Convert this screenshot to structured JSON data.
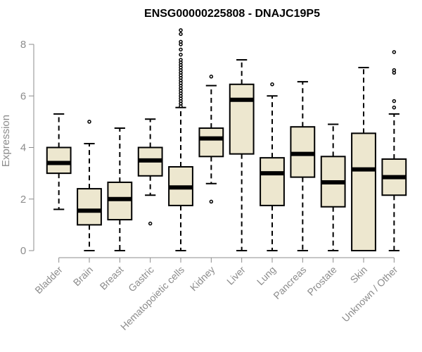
{
  "chart_data": {
    "type": "box",
    "title": "ENSG00000225808 - DNAJC19P5",
    "ylabel": "Expression",
    "xlabel": "",
    "ylim": [
      0,
      8.6
    ],
    "yticks": [
      0,
      2,
      4,
      6,
      8
    ],
    "grid": false,
    "colors": {
      "box_fill": "#ede7cf",
      "stroke": "#000000",
      "axis_text": "#8c8c8c"
    },
    "categories": [
      "Bladder",
      "Brain",
      "Breast",
      "Gastric",
      "Hematopoietic cells",
      "Kidney",
      "Liver",
      "Lung",
      "Pancreas",
      "Prostate",
      "Skin",
      "Unknown / Other"
    ],
    "boxes": [
      {
        "category": "Bladder",
        "whisker_low": 1.6,
        "q1": 3.0,
        "median": 3.4,
        "q3": 4.0,
        "whisker_high": 5.3,
        "outliers": []
      },
      {
        "category": "Brain",
        "whisker_low": 0.0,
        "q1": 1.0,
        "median": 1.55,
        "q3": 2.4,
        "whisker_high": 4.15,
        "outliers": [
          5.0
        ]
      },
      {
        "category": "Breast",
        "whisker_low": 0.0,
        "q1": 1.2,
        "median": 2.0,
        "q3": 2.65,
        "whisker_high": 4.75,
        "outliers": []
      },
      {
        "category": "Gastric",
        "whisker_low": 2.15,
        "q1": 2.9,
        "median": 3.5,
        "q3": 4.0,
        "whisker_high": 5.1,
        "outliers": [
          1.05
        ]
      },
      {
        "category": "Hematopoietic cells",
        "whisker_low": 0.0,
        "q1": 1.75,
        "median": 2.45,
        "q3": 3.25,
        "whisker_high": 5.55,
        "outliers": [
          5.6,
          5.7,
          5.8,
          5.9,
          6.0,
          6.1,
          6.2,
          6.3,
          6.4,
          6.5,
          6.6,
          6.7,
          6.8,
          6.9,
          7.0,
          7.1,
          7.2,
          7.3,
          7.4,
          7.6,
          7.8,
          8.0,
          8.1,
          8.4,
          8.55
        ]
      },
      {
        "category": "Kidney",
        "whisker_low": 2.6,
        "q1": 3.65,
        "median": 4.35,
        "q3": 4.75,
        "whisker_high": 6.4,
        "outliers": [
          1.9,
          6.75
        ]
      },
      {
        "category": "Liver",
        "whisker_low": 0.0,
        "q1": 3.75,
        "median": 5.85,
        "q3": 6.45,
        "whisker_high": 7.4,
        "outliers": []
      },
      {
        "category": "Lung",
        "whisker_low": 0.0,
        "q1": 1.75,
        "median": 3.0,
        "q3": 3.6,
        "whisker_high": 6.0,
        "outliers": [
          6.45
        ]
      },
      {
        "category": "Pancreas",
        "whisker_low": 0.0,
        "q1": 2.85,
        "median": 3.75,
        "q3": 4.8,
        "whisker_high": 6.55,
        "outliers": []
      },
      {
        "category": "Prostate",
        "whisker_low": 0.0,
        "q1": 1.7,
        "median": 2.65,
        "q3": 3.65,
        "whisker_high": 4.9,
        "outliers": []
      },
      {
        "category": "Skin",
        "whisker_low": 0.0,
        "q1": 0.0,
        "median": 3.15,
        "q3": 4.55,
        "whisker_high": 7.1,
        "outliers": []
      },
      {
        "category": "Unknown / Other",
        "whisker_low": 0.0,
        "q1": 2.15,
        "median": 2.85,
        "q3": 3.55,
        "whisker_high": 5.3,
        "outliers": [
          5.55,
          5.8,
          6.9,
          7.0,
          7.7
        ]
      }
    ]
  }
}
